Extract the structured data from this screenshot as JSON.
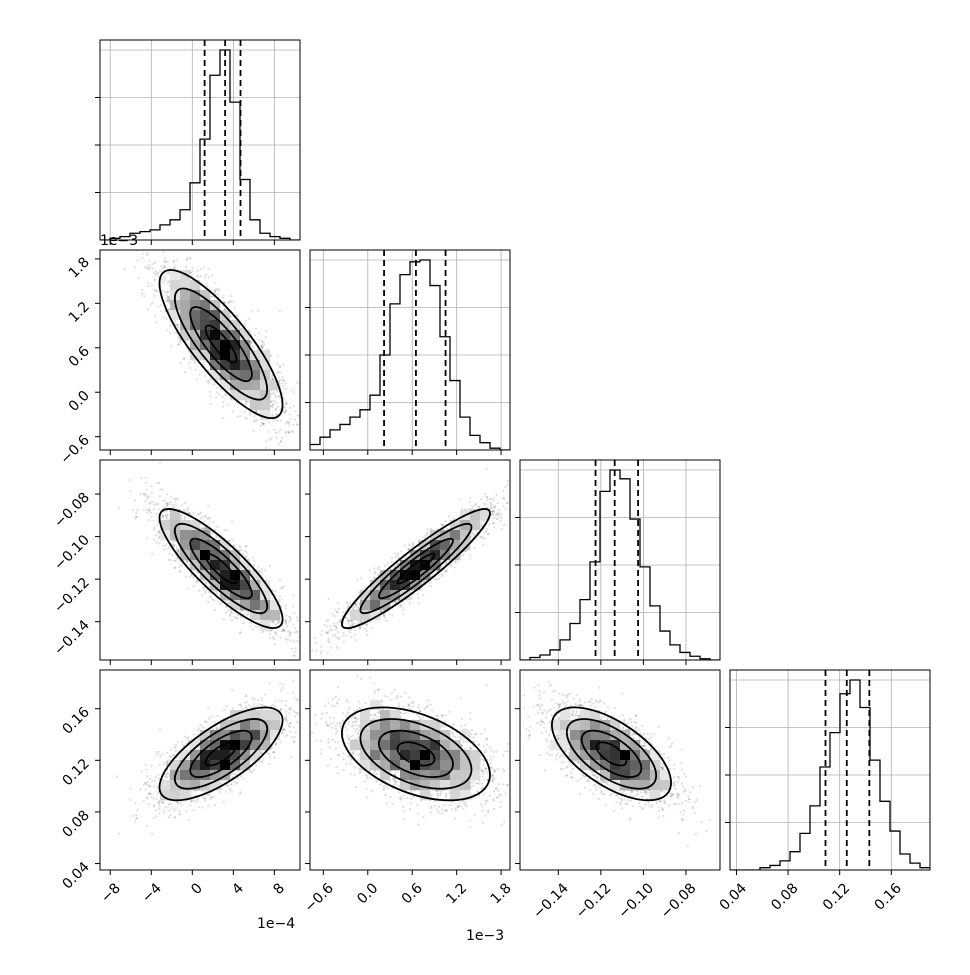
{
  "chart_data": {
    "type": "corner",
    "n_params": 4,
    "params": [
      {
        "range": [
          -9.0,
          10.5
        ],
        "ticks": [
          -8,
          -4,
          0,
          4,
          8
        ],
        "tick_labels": [
          "−8",
          "−4",
          "0",
          "4",
          "8"
        ],
        "offset_label": "1e−4",
        "quantiles": [
          1.2,
          3.2,
          4.7
        ],
        "hist_edges_start": -9.0,
        "hist_bin_width": 0.975,
        "hist_counts": [
          0,
          1,
          2,
          4,
          5,
          6,
          9,
          12,
          18,
          34,
          60,
          98,
          113,
          82,
          36,
          12,
          4,
          2,
          1,
          0
        ]
      },
      {
        "range": [
          -0.78,
          1.92
        ],
        "ticks": [
          -0.6,
          0.0,
          0.6,
          1.2,
          1.8
        ],
        "tick_labels": [
          "−0.6",
          "0.0",
          "0.6",
          "1.2",
          "1.8"
        ],
        "offset_label": "1e−3",
        "quantiles": [
          0.22,
          0.65,
          1.05
        ],
        "hist_edges_start": -0.78,
        "hist_bin_width": 0.135,
        "hist_counts": [
          3,
          7,
          11,
          14,
          18,
          22,
          30,
          52,
          80,
          96,
          103,
          104,
          90,
          62,
          38,
          18,
          8,
          4,
          1,
          0
        ]
      },
      {
        "range": [
          -0.158,
          -0.064
        ],
        "ticks": [
          -0.14,
          -0.12,
          -0.1,
          -0.08
        ],
        "tick_labels": [
          "−0.14",
          "−0.12",
          "−0.10",
          "−0.08"
        ],
        "quantiles": [
          -0.1225,
          -0.1135,
          -0.1025
        ],
        "hist_edges_start": -0.158,
        "hist_bin_width": 0.0047,
        "hist_counts": [
          0,
          2,
          4,
          8,
          16,
          29,
          48,
          78,
          134,
          151,
          144,
          112,
          74,
          43,
          23,
          12,
          6,
          3,
          1,
          0
        ]
      },
      {
        "range": [
          0.035,
          0.19
        ],
        "ticks": [
          0.04,
          0.08,
          0.12,
          0.16
        ],
        "tick_labels": [
          "0.04",
          "0.08",
          "0.12",
          "0.16"
        ],
        "quantiles": [
          0.109,
          0.1255,
          0.143
        ],
        "hist_edges_start": 0.035,
        "hist_bin_width": 0.00775,
        "hist_counts": [
          0,
          0,
          0,
          1,
          2,
          4,
          8,
          16,
          28,
          45,
          60,
          77,
          83,
          71,
          48,
          30,
          17,
          7,
          3,
          1
        ]
      }
    ],
    "pairs": [
      {
        "x": 0,
        "y": 1,
        "mean": [
          2.8,
          0.65
        ],
        "sd": [
          3.0,
          0.5
        ],
        "corr": -0.82
      },
      {
        "x": 0,
        "y": 2,
        "mean": [
          2.8,
          -0.115
        ],
        "sd": [
          3.0,
          0.014
        ],
        "corr": -0.85
      },
      {
        "x": 1,
        "y": 2,
        "mean": [
          0.65,
          -0.115
        ],
        "sd": [
          0.5,
          0.014
        ],
        "corr": 0.93
      },
      {
        "x": 0,
        "y": 3,
        "mean": [
          2.8,
          0.125
        ],
        "sd": [
          3.0,
          0.018
        ],
        "corr": 0.72
      },
      {
        "x": 1,
        "y": 3,
        "mean": [
          0.65,
          0.125
        ],
        "sd": [
          0.5,
          0.018
        ],
        "corr": -0.45
      },
      {
        "x": 2,
        "y": 3,
        "mean": [
          -0.115,
          0.125
        ],
        "sd": [
          0.014,
          0.018
        ],
        "corr": -0.62
      }
    ]
  }
}
